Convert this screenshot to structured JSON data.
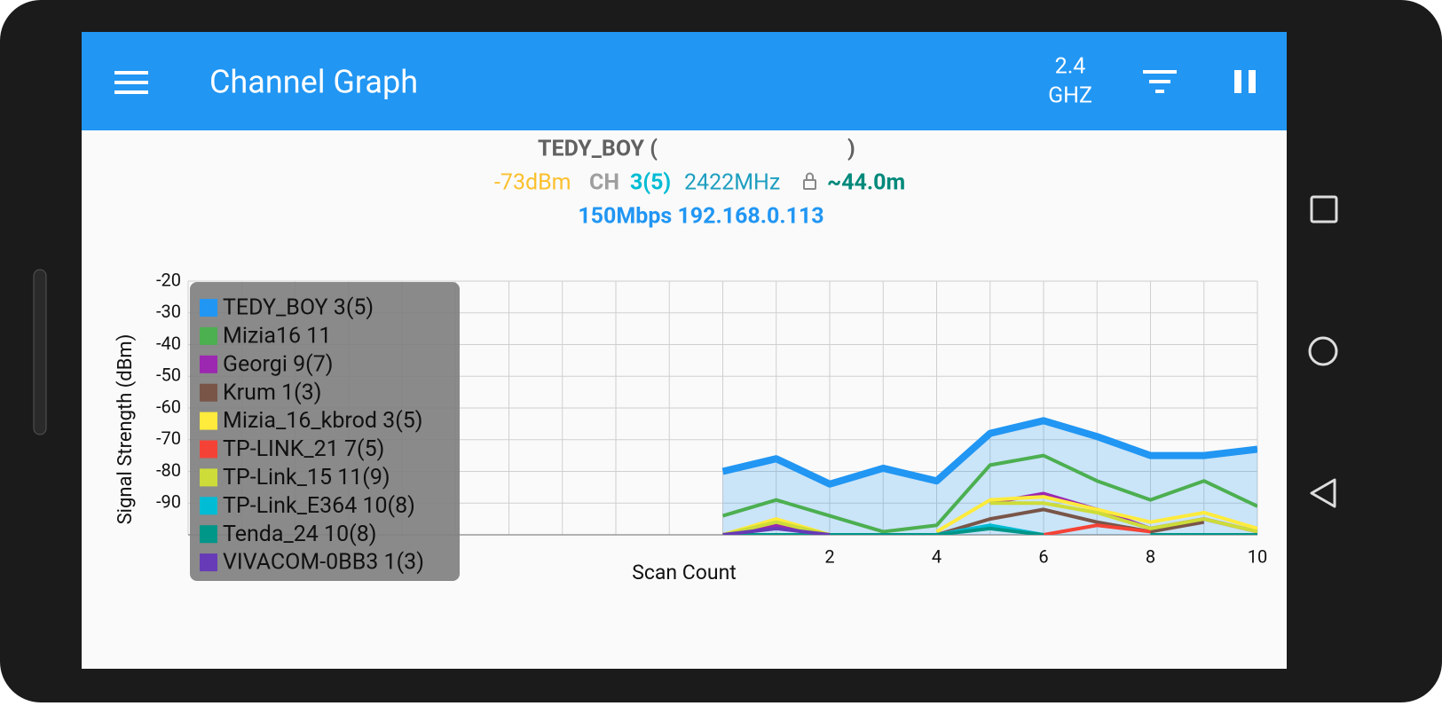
{
  "app_bar": {
    "title": "Channel Graph",
    "band_top": "2.4",
    "band_bottom": "GHZ"
  },
  "header": {
    "ssid_open": "TEDY_BOY (",
    "ssid_close": ")",
    "signal": "-73dBm",
    "ch_label": "CH",
    "channel": "3(5)",
    "frequency": "2422MHz",
    "distance": "~44.0m",
    "link": "150Mbps 192.168.0.113"
  },
  "chart_data": {
    "type": "line",
    "ylabel": "Signal Strength (dBm)",
    "xlabel": "Scan Count",
    "x": [
      0,
      1,
      2,
      3,
      4,
      5,
      6,
      7,
      8,
      9,
      10
    ],
    "xlim": [
      -10,
      10
    ],
    "xticks": [
      2,
      4,
      6,
      8,
      10
    ],
    "ylim": [
      -100,
      -20
    ],
    "yticks": [
      -20,
      -30,
      -40,
      -50,
      -60,
      -70,
      -80,
      -90
    ],
    "grid": true,
    "legend": "upper left",
    "series": [
      {
        "name": "TEDY_BOY 3(5)",
        "color": "#2196F3",
        "values": [
          -80,
          -76,
          -84,
          -79,
          -83,
          -68,
          -64,
          -69,
          -75,
          -75,
          -73
        ]
      },
      {
        "name": "Mizia16 11",
        "color": "#4CAF50",
        "values": [
          -94,
          -89,
          -94,
          -99,
          -97,
          -78,
          -75,
          -83,
          -89,
          -83,
          -91
        ]
      },
      {
        "name": "Georgi 9(7)",
        "color": "#9C27B0",
        "values": [
          -100,
          -97,
          -100,
          null,
          null,
          -90,
          -87,
          -92,
          -98,
          -95,
          -99
        ]
      },
      {
        "name": "Krum 1(3)",
        "color": "#795548",
        "values": [
          null,
          null,
          null,
          null,
          -100,
          -95,
          -92,
          -96,
          -99,
          -96,
          null
        ]
      },
      {
        "name": "Mizia_16_kbrod 3(5)",
        "color": "#FFEB3B",
        "values": [
          -100,
          -95,
          -100,
          null,
          -99,
          -89,
          -88,
          -92,
          -96,
          -93,
          -98
        ]
      },
      {
        "name": "TP-LINK_21 7(5)",
        "color": "#F44336",
        "values": [
          null,
          null,
          null,
          null,
          null,
          null,
          -100,
          -97,
          -99,
          null,
          null
        ]
      },
      {
        "name": "TP-Link_15 11(9)",
        "color": "#CDDC39",
        "values": [
          -100,
          -96,
          -100,
          null,
          null,
          -90,
          -90,
          -93,
          -98,
          -95,
          -99
        ]
      },
      {
        "name": "TP-Link_E364 10(8)",
        "color": "#00BCD4",
        "values": [
          null,
          null,
          null,
          null,
          -100,
          -97,
          -100,
          null,
          null,
          null,
          null
        ]
      },
      {
        "name": "Tenda_24 10(8)",
        "color": "#009688",
        "values": [
          -100,
          -100,
          -100,
          -100,
          -100,
          -98,
          -100,
          null,
          -100,
          -100,
          -100
        ]
      },
      {
        "name": "VIVACOM-0BB3 1(3)",
        "color": "#673AB7",
        "values": [
          -100,
          -98,
          -100,
          null,
          null,
          null,
          null,
          null,
          null,
          null,
          null
        ]
      }
    ]
  }
}
